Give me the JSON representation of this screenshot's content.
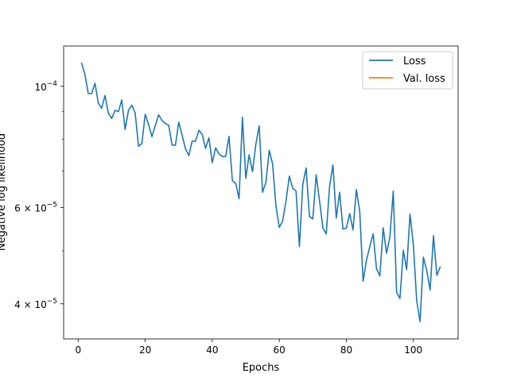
{
  "chart_data": {
    "type": "line",
    "title": "",
    "xlabel": "Epochs",
    "ylabel": "Negative log likelihood",
    "xlim": [
      -4.35,
      113.35
    ],
    "ylim": [
      3.45e-05,
      0.0001185
    ],
    "yscale": "log",
    "grid": false,
    "legend_position": "top-right",
    "x_ticks": [
      0,
      20,
      40,
      60,
      80,
      100
    ],
    "x_tick_labels": [
      "0",
      "20",
      "40",
      "60",
      "80",
      "100"
    ],
    "y_ticks": [
      4e-05,
      6e-05,
      0.0001
    ],
    "y_tick_labels": [
      {
        "mantissa": "4",
        "times": "×",
        "base": "10",
        "exponent": "−5"
      },
      {
        "mantissa": "6",
        "times": "×",
        "base": "10",
        "exponent": "−5"
      },
      {
        "mantissa": "",
        "times": "",
        "base": "10",
        "exponent": "−4"
      }
    ],
    "series": [
      {
        "name": "Loss",
        "color": "#1f77b4",
        "x": [
          1,
          2,
          3,
          4,
          5,
          6,
          7,
          8,
          9,
          10,
          11,
          12,
          13,
          14,
          15,
          16,
          17,
          18,
          19,
          20,
          21,
          22,
          23,
          24,
          25,
          26,
          27,
          28,
          29,
          30,
          31,
          32,
          33,
          34,
          35,
          36,
          37,
          38,
          39,
          40,
          41,
          42,
          43,
          44,
          45,
          46,
          47,
          48,
          49,
          50,
          51,
          52,
          53,
          54,
          55,
          56,
          57,
          58,
          59,
          60,
          61,
          62,
          63,
          64,
          65,
          66,
          67,
          68,
          69,
          70,
          71,
          72,
          73,
          74,
          75,
          76,
          77,
          78,
          79,
          80,
          81,
          82,
          83,
          84,
          85,
          86,
          87,
          88,
          89,
          90,
          91,
          92,
          93,
          94,
          95,
          96,
          97,
          98,
          99,
          100,
          101,
          102,
          103,
          104,
          105,
          106,
          107,
          108
        ],
        "values": [
          0.0001102,
          0.0001052,
          9.7e-05,
          9.7e-05,
          0.0001013,
          9.32e-05,
          9.12e-05,
          9.62e-05,
          8.93e-05,
          8.73e-05,
          9.04e-05,
          8.99e-05,
          9.44e-05,
          8.34e-05,
          9.04e-05,
          9.24e-05,
          8.93e-05,
          7.77e-05,
          7.86e-05,
          8.89e-05,
          8.51e-05,
          8.09e-05,
          8.48e-05,
          8.87e-05,
          8.66e-05,
          8.55e-05,
          8.49e-05,
          7.81e-05,
          7.8e-05,
          8.6e-05,
          8.14e-05,
          7.69e-05,
          7.47e-05,
          7.94e-05,
          7.93e-05,
          8.31e-05,
          8.17e-05,
          7.7e-05,
          8.05e-05,
          7.25e-05,
          7.72e-05,
          7.52e-05,
          7.44e-05,
          7.44e-05,
          8.1e-05,
          6.72e-05,
          6.64e-05,
          6.23e-05,
          8.78e-05,
          6.79e-05,
          7.49e-05,
          6.98e-05,
          7.83e-05,
          8.47e-05,
          6.4e-05,
          6.67e-05,
          7.64e-05,
          7.21e-05,
          6.04e-05,
          5.52e-05,
          5.67e-05,
          6.17e-05,
          6.85e-05,
          6.51e-05,
          6.43e-05,
          5.09e-05,
          6.61e-05,
          7.09e-05,
          5.78e-05,
          5.72e-05,
          6.89e-05,
          6.18e-05,
          5.51e-05,
          5.37e-05,
          6.56e-05,
          7.18e-05,
          5.74e-05,
          6.4e-05,
          5.48e-05,
          5.5e-05,
          5.85e-05,
          5.46e-05,
          6.47e-05,
          5.9e-05,
          4.4e-05,
          4.8e-05,
          5.09e-05,
          5.37e-05,
          4.64e-05,
          4.5e-05,
          5.51e-05,
          4.95e-05,
          5.3e-05,
          6.43e-05,
          4.2e-05,
          4.09e-05,
          5.01e-05,
          4.62e-05,
          5.84e-05,
          5.13e-05,
          4.05e-05,
          3.71e-05,
          4.87e-05,
          4.6e-05,
          4.24e-05,
          5.33e-05,
          4.51e-05,
          4.67e-05
        ]
      },
      {
        "name": "Val. loss",
        "color": "#ff7f0e",
        "x": [],
        "values": []
      }
    ]
  }
}
